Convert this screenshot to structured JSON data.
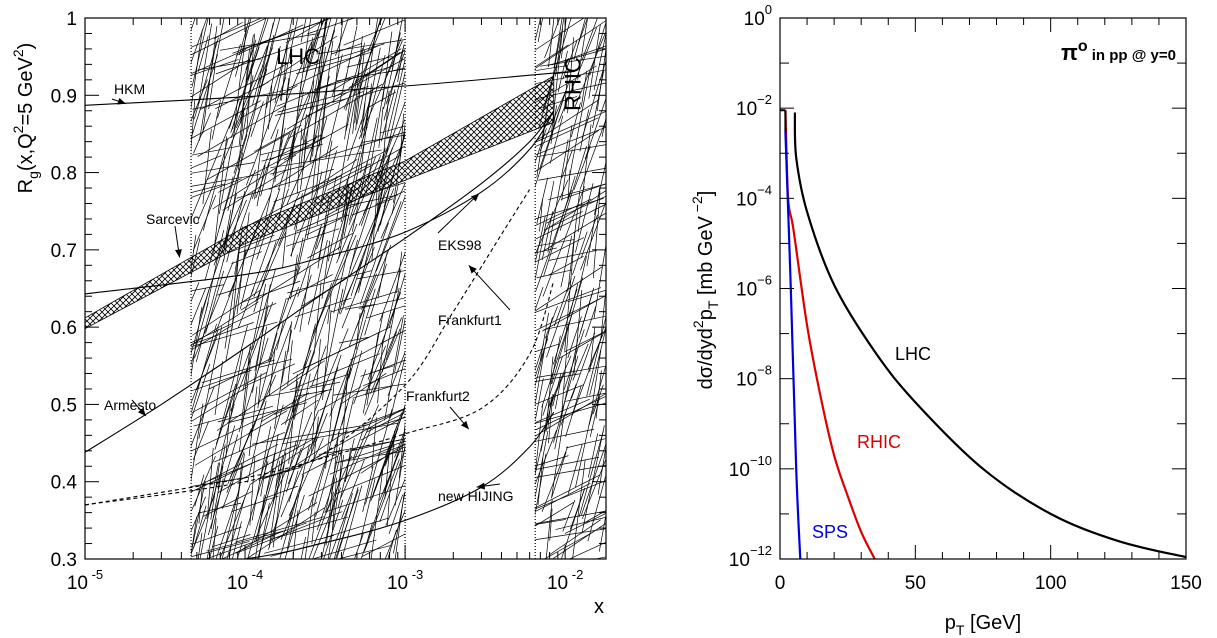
{
  "chart_data": [
    {
      "type": "line",
      "xlabel": "x",
      "ylabel": "R_g(x,Q^2=5 GeV^2)",
      "xscale": "log",
      "xlim": [
        1e-05,
        0.018
      ],
      "ylim": [
        0.3,
        1.0
      ],
      "x_ticks": [
        {
          "base": "10",
          "exp": "-5"
        },
        {
          "base": "10",
          "exp": "-4"
        },
        {
          "base": "10",
          "exp": "-3"
        },
        {
          "base": "10",
          "exp": "-2"
        }
      ],
      "y_ticks": [
        "0.3",
        "0.4",
        "0.5",
        "0.6",
        "0.7",
        "0.8",
        "0.9",
        "1"
      ],
      "bands": [
        {
          "label": "LHC",
          "x_range": [
            4.6e-05,
            0.001
          ]
        },
        {
          "label": "RHIC",
          "x_range": [
            0.0065,
            0.018
          ]
        }
      ],
      "series": [
        {
          "name": "HKM",
          "style": "solid",
          "x": [
            1e-05,
            0.0001,
            0.001,
            0.01,
            0.0085
          ],
          "y": [
            0.887,
            0.898,
            0.912,
            0.93,
            0.928
          ]
        },
        {
          "name": "EKS98",
          "style": "solid",
          "x": [
            1e-05,
            0.0001,
            0.0003,
            0.001,
            0.003,
            0.006,
            0.0085
          ],
          "y": [
            0.643,
            0.668,
            0.69,
            0.723,
            0.775,
            0.83,
            0.88
          ]
        },
        {
          "name": "Frankfurt1",
          "style": "dashed",
          "x": [
            1e-05,
            0.0001,
            0.0003,
            0.001,
            0.002,
            0.004,
            0.006
          ],
          "y": [
            0.37,
            0.4,
            0.435,
            0.525,
            0.62,
            0.72,
            0.778
          ]
        },
        {
          "name": "Armesto",
          "style": "solid",
          "x": [
            1e-05,
            3e-05,
            0.0001,
            0.0003,
            0.001,
            0.003,
            0.006,
            0.0085
          ],
          "y": [
            0.438,
            0.5,
            0.573,
            0.642,
            0.715,
            0.786,
            0.84,
            0.88
          ]
        },
        {
          "name": "Frankfurt2",
          "style": "dashed",
          "x": [
            1e-05,
            0.0001,
            0.0003,
            0.001,
            0.003,
            0.006,
            0.0085
          ],
          "y": [
            0.37,
            0.405,
            0.43,
            0.462,
            0.495,
            0.565,
            0.66
          ]
        },
        {
          "name": "new HIJING",
          "style": "solid",
          "x": [
            1e-05,
            0.0001,
            0.0003,
            0.001,
            0.003,
            0.006,
            0.0085
          ],
          "y": [
            0.275,
            0.3,
            0.32,
            0.35,
            0.393,
            0.445,
            0.49
          ]
        }
      ],
      "sarcevic_band": {
        "name": "Sarcevic",
        "x": [
          1e-05,
          0.0001,
          0.001,
          0.0085
        ],
        "y_low": [
          0.598,
          0.708,
          0.79,
          0.865
        ],
        "y_high": [
          0.612,
          0.73,
          0.815,
          0.925
        ]
      },
      "annotations": [
        {
          "text": "HKM",
          "arrow_to": [
            1.8e-05,
            0.889
          ]
        },
        {
          "text": "Sarcevic",
          "arrow_to": [
            3.9e-05,
            0.69
          ]
        },
        {
          "text": "EKS98",
          "arrow_to": [
            0.0029,
            0.773
          ]
        },
        {
          "text": "Frankfurt1",
          "arrow_to": [
            0.0025,
            0.68
          ]
        },
        {
          "text": "Armesto",
          "arrow_to": [
            2.4e-05,
            0.485
          ]
        },
        {
          "text": "Frankfurt2",
          "arrow_to": [
            0.0025,
            0.468
          ]
        },
        {
          "text": "new HIJING",
          "arrow_to": [
            0.0028,
            0.393
          ]
        }
      ]
    },
    {
      "type": "line",
      "title": "π^o in pp @ y=0",
      "xlabel": "p_T [GeV]",
      "ylabel": "dσ/dyd^2p_T [mb GeV^-2]",
      "yscale": "log",
      "xlim": [
        0,
        150
      ],
      "ylim": [
        1e-12,
        1
      ],
      "x_ticks": [
        "0",
        "50",
        "100",
        "150"
      ],
      "y_ticks": [
        {
          "base": "10",
          "exp": "0"
        },
        {
          "base": "10",
          "exp": "−2"
        },
        {
          "base": "10",
          "exp": "−4"
        },
        {
          "base": "10",
          "exp": "−6"
        },
        {
          "base": "10",
          "exp": "−8"
        },
        {
          "base": "10",
          "exp": "−10"
        },
        {
          "base": "10",
          "exp": "−12"
        }
      ],
      "series": [
        {
          "name": "LHC",
          "color": "#000000",
          "x": [
            5.5,
            6,
            10,
            20,
            35,
            50,
            75,
            100,
            125,
            150
          ],
          "y": [
            0.008,
            0.0008,
            5e-05,
            1e-06,
            3e-08,
            2e-09,
            5e-11,
            3e-12,
            5e-12,
            1.5e-12
          ]
        },
        {
          "name": "RHIC",
          "color": "#dd0000",
          "x": [
            2,
            3,
            5,
            10,
            15,
            20,
            25,
            30,
            35
          ],
          "y": [
            0.009,
            0.0001,
            2e-05,
            1e-07,
            2.5e-09,
            1e-10,
            4e-12,
            2.5e-11,
            1e-12
          ]
        },
        {
          "name": "SPS",
          "color": "#0000dd",
          "x": [
            2,
            4,
            6,
            7.5
          ],
          "y": [
            0.003,
            1e-06,
            1e-10,
            1e-12
          ]
        }
      ],
      "flat_start": {
        "x": [
          0,
          2
        ],
        "y": 0.009
      }
    }
  ]
}
